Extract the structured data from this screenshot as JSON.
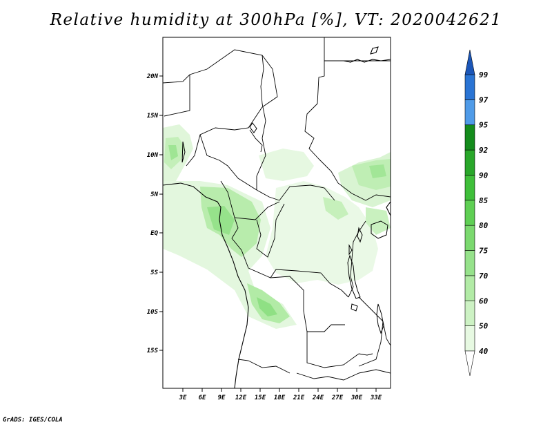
{
  "title": "Relative humidity at 300hPa [%], VT: 2020042621",
  "credit": "GrADS: IGES/COLA",
  "lat_ticks": [
    "20N",
    "15N",
    "10N",
    "5N",
    "EQ",
    "5S",
    "10S",
    "15S"
  ],
  "lon_ticks": [
    "3E",
    "6E",
    "9E",
    "12E",
    "15E",
    "18E",
    "21E",
    "24E",
    "27E",
    "30E",
    "33E"
  ],
  "colorbar": {
    "levels": [
      "40",
      "50",
      "60",
      "70",
      "75",
      "80",
      "85",
      "90",
      "92",
      "95",
      "97",
      "99"
    ],
    "colors": [
      "#e7f9e2",
      "#cdf2c4",
      "#b2eba6",
      "#96e28b",
      "#7bd96f",
      "#5fcf54",
      "#3fbf3a",
      "#29a72a",
      "#148c1c",
      "#4f9be8",
      "#2a74d4",
      "#1b56b8"
    ],
    "top_color": "#1b56b8",
    "bottom_color": "#ffffff"
  },
  "colors": {
    "border": "#000000",
    "background": "#ffffff"
  }
}
